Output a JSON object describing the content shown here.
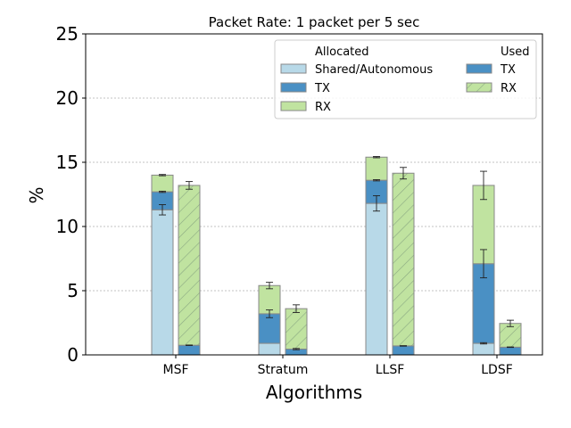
{
  "chart_data": {
    "type": "bar",
    "title": "Packet Rate: 1 packet per 5 sec",
    "xlabel": "Algorithms",
    "ylabel": "%",
    "categories": [
      "MSF",
      "Stratum",
      "LLSF",
      "LDSF"
    ],
    "ylim": [
      0,
      25
    ],
    "yticks": [
      0,
      5,
      10,
      15,
      20,
      25
    ],
    "grid": "horizontal dashed",
    "legend_placement": "top-right",
    "legend": {
      "allocated_title": "Allocated",
      "used_title": "Used",
      "allocated_labels": [
        "Shared/Autonomous",
        "TX",
        "RX"
      ],
      "used_labels": [
        "TX",
        "RX"
      ]
    },
    "colors": {
      "shared": "#b8d9e8",
      "tx": "#4a90c4",
      "rx": "#c0e3a0",
      "hatch": "#8aa882",
      "edge": "#888888"
    },
    "allocated": {
      "shared": [
        11.3,
        0.9,
        11.8,
        0.9
      ],
      "tx": [
        1.4,
        2.3,
        1.8,
        6.2
      ],
      "rx": [
        1.3,
        2.2,
        1.8,
        6.1
      ],
      "error_bottom": [
        0.4,
        0.0,
        0.6,
        0.05
      ],
      "error_mid": [
        0.05,
        0.3,
        0.05,
        1.1
      ],
      "error_top": [
        0.05,
        0.25,
        0.05,
        1.1
      ]
    },
    "used": {
      "tx": [
        0.75,
        0.45,
        0.7,
        0.6
      ],
      "rx": [
        12.45,
        3.15,
        13.45,
        1.85
      ],
      "error_tx": [
        0.02,
        0.05,
        0.02,
        0.02
      ],
      "error_top": [
        0.3,
        0.3,
        0.45,
        0.25
      ]
    }
  }
}
